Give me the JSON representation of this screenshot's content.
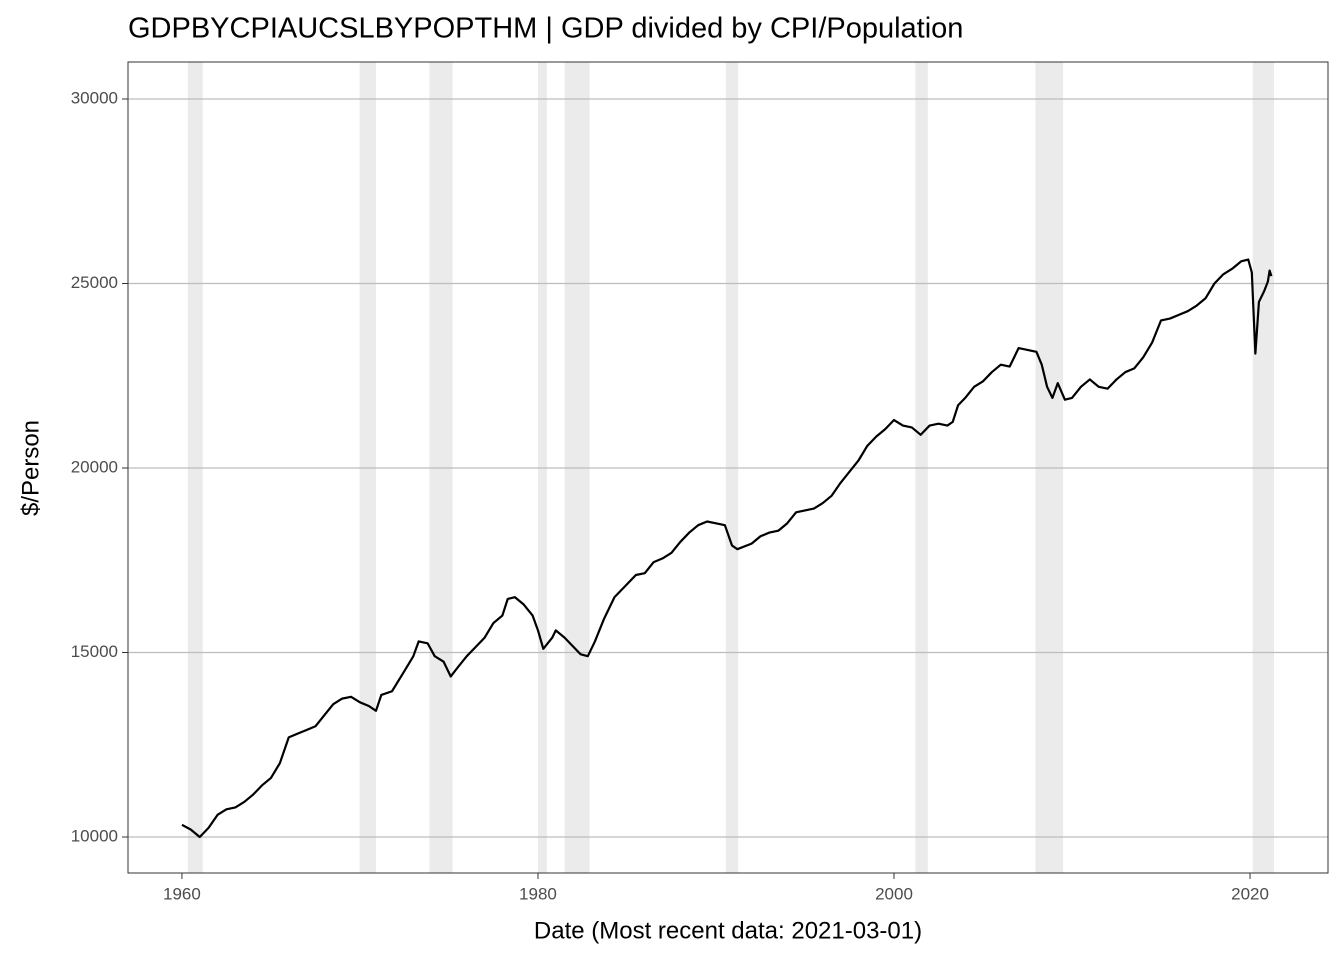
{
  "chart_data": {
    "type": "line",
    "title": "GDPBYCPIAUCSLBYPOPTHM | GDP divided by CPI/Population",
    "xlabel": "Date (Most recent data: 2021-03-01)",
    "ylabel": "$/Person",
    "xlim": [
      1956.97,
      2024.38
    ],
    "ylim": [
      9024,
      31003
    ],
    "xticks": [
      1960,
      1980,
      2000,
      2020
    ],
    "yticks": [
      10000,
      15000,
      20000,
      25000,
      30000
    ],
    "grid": true,
    "recession_color": "#ebebeb",
    "recessions": [
      [
        1960.33,
        1961.17
      ],
      [
        1969.98,
        1970.9
      ],
      [
        1973.9,
        1975.2
      ],
      [
        1980.0,
        1980.5
      ],
      [
        1981.5,
        1982.9
      ],
      [
        1990.55,
        1991.25
      ],
      [
        2001.2,
        2001.9
      ],
      [
        2007.95,
        2009.5
      ],
      [
        2020.15,
        2021.35
      ]
    ],
    "series": [
      {
        "color": "#000000",
        "x": [
          1960.0,
          1960.5,
          1961.0,
          1961.5,
          1962.0,
          1962.5,
          1963.0,
          1963.5,
          1964.0,
          1964.5,
          1965.0,
          1965.5,
          1966.0,
          1966.5,
          1967.0,
          1967.5,
          1968.0,
          1968.5,
          1969.0,
          1969.5,
          1970.0,
          1970.5,
          1970.9,
          1971.2,
          1971.8,
          1972.5,
          1973.0,
          1973.3,
          1973.8,
          1974.2,
          1974.7,
          1975.1,
          1975.5,
          1976.0,
          1976.5,
          1977.0,
          1977.5,
          1978.0,
          1978.3,
          1978.7,
          1979.2,
          1979.7,
          1980.0,
          1980.3,
          1980.8,
          1981.0,
          1981.5,
          1982.0,
          1982.4,
          1982.8,
          1983.2,
          1983.7,
          1984.3,
          1985.0,
          1985.5,
          1986.0,
          1986.5,
          1987.0,
          1987.5,
          1988.0,
          1988.5,
          1989.0,
          1989.5,
          1990.0,
          1990.5,
          1990.9,
          1991.2,
          1992.0,
          1992.5,
          1993.0,
          1993.5,
          1994.0,
          1994.5,
          1995.0,
          1995.5,
          1996.0,
          1996.5,
          1997.0,
          1997.5,
          1998.0,
          1998.5,
          1999.0,
          1999.5,
          2000.0,
          2000.5,
          2001.0,
          2001.5,
          2002.0,
          2002.5,
          2003.0,
          2003.3,
          2003.6,
          2004.0,
          2004.5,
          2005.0,
          2005.5,
          2006.0,
          2006.5,
          2007.0,
          2007.5,
          2008.0,
          2008.3,
          2008.6,
          2008.9,
          2009.2,
          2009.6,
          2010.0,
          2010.5,
          2011.0,
          2011.5,
          2012.0,
          2012.5,
          2013.0,
          2013.5,
          2014.0,
          2014.5,
          2015.0,
          2015.5,
          2016.0,
          2016.5,
          2017.0,
          2017.5,
          2018.0,
          2018.5,
          2019.0,
          2019.5,
          2019.9,
          2020.1,
          2020.3,
          2020.5,
          2020.8,
          2021.0,
          2021.1,
          2021.2
        ],
        "values": [
          10330,
          10200,
          10000,
          10250,
          10600,
          10750,
          10800,
          10950,
          11150,
          11400,
          11600,
          12000,
          12700,
          12800,
          12900,
          13000,
          13300,
          13600,
          13750,
          13800,
          13650,
          13550,
          13420,
          13850,
          13950,
          14500,
          14900,
          15300,
          15250,
          14900,
          14750,
          14350,
          14600,
          14900,
          15150,
          15400,
          15800,
          16000,
          16450,
          16500,
          16300,
          16000,
          15600,
          15100,
          15400,
          15600,
          15400,
          15150,
          14950,
          14900,
          15300,
          15900,
          16500,
          16850,
          17100,
          17150,
          17450,
          17550,
          17700,
          18000,
          18250,
          18450,
          18550,
          18500,
          18450,
          17900,
          17800,
          17950,
          18150,
          18250,
          18300,
          18500,
          18800,
          18850,
          18900,
          19050,
          19250,
          19600,
          19900,
          20200,
          20600,
          20850,
          21050,
          21300,
          21150,
          21100,
          20900,
          21150,
          21200,
          21150,
          21250,
          21700,
          21900,
          22200,
          22350,
          22600,
          22800,
          22750,
          23250,
          23200,
          23150,
          22800,
          22200,
          21900,
          22300,
          21850,
          21900,
          22200,
          22400,
          22200,
          22150,
          22400,
          22600,
          22700,
          23000,
          23400,
          24000,
          24050,
          24150,
          24250,
          24400,
          24600,
          25000,
          25250,
          25400,
          25600,
          25650,
          25300,
          23100,
          24500,
          24800,
          25050,
          25350,
          25200
        ]
      }
    ]
  }
}
